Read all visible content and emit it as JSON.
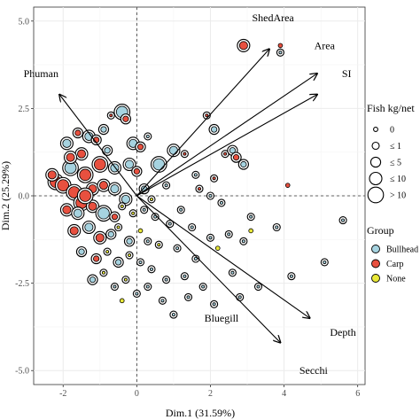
{
  "chart_data": {
    "type": "scatter",
    "xlabel": "Dim.1 (31.59%)",
    "ylabel": "Dim.2 (25.29%)",
    "xlim": [
      -2.8,
      6.2
    ],
    "ylim": [
      -5.4,
      5.4
    ],
    "x_ticks": [
      -2,
      0,
      2,
      4,
      6
    ],
    "y_ticks": [
      -5.0,
      -2.5,
      0.0,
      2.5,
      5.0
    ],
    "x_tick_labels": [
      "-2",
      "0",
      "2",
      "4",
      "6"
    ],
    "y_tick_labels": [
      "-5.0",
      "-2.5",
      "0.0",
      "2.5",
      "5.0"
    ],
    "grid": true,
    "legend_position": "right",
    "arrows": [
      {
        "name": "ShedArea",
        "x": 3.6,
        "y": 4.2,
        "label_x": 3.7,
        "label_y": 5.0
      },
      {
        "name": "Area",
        "x": 4.9,
        "y": 3.5,
        "label_x": 5.1,
        "label_y": 4.2
      },
      {
        "name": "SI",
        "x": 4.9,
        "y": 2.9,
        "label_x": 5.7,
        "label_y": 3.4
      },
      {
        "name": "Phuman",
        "x": -2.1,
        "y": 2.9,
        "label_x": -2.6,
        "label_y": 3.4
      },
      {
        "name": "Bluegill",
        "x": 3.9,
        "y": -4.2,
        "label_x": 2.3,
        "label_y": -3.6
      },
      {
        "name": "Depth",
        "x": 4.7,
        "y": -3.5,
        "label_x": 5.6,
        "label_y": -4.0
      },
      {
        "name": "Secchi",
        "x": 0,
        "y": 0,
        "label_x": 4.8,
        "label_y": -5.1
      }
    ],
    "size_legend": {
      "title": "Fish kg/net",
      "levels": [
        "0",
        "≤ 1",
        "≤ 5",
        "≤ 10",
        "> 10"
      ]
    },
    "group_legend": {
      "title": "Group",
      "levels": [
        "Bullhead",
        "Carp",
        "None"
      ]
    },
    "group_colors": {
      "Bullhead": "#a6d3e0",
      "Carp": "#e8503f",
      "None": "#e9e838"
    },
    "points": [
      [
        -1.9,
        1.5,
        "Bullhead",
        3
      ],
      [
        -1.6,
        1.8,
        "Carp",
        2
      ],
      [
        -1.3,
        1.7,
        "Bullhead",
        3
      ],
      [
        -1.1,
        1.6,
        "Carp",
        2
      ],
      [
        -0.7,
        2.3,
        "Carp",
        1
      ],
      [
        -0.4,
        2.4,
        "Bullhead",
        4
      ],
      [
        -0.3,
        2.2,
        "Carp",
        2
      ],
      [
        -0.1,
        1.5,
        "Bullhead",
        3
      ],
      [
        0.1,
        1.4,
        "Carp",
        2
      ],
      [
        0.6,
        0.9,
        "Bullhead",
        4
      ],
      [
        1.0,
        1.3,
        "Bullhead",
        3
      ],
      [
        1.3,
        1.2,
        "Carp",
        1
      ],
      [
        1.9,
        2.3,
        "Carp",
        1
      ],
      [
        2.1,
        1.9,
        "Bullhead",
        2
      ],
      [
        2.4,
        1.2,
        "Carp",
        1
      ],
      [
        2.6,
        1.3,
        "Bullhead",
        2
      ],
      [
        2.9,
        4.3,
        "Carp",
        3
      ],
      [
        3.9,
        4.1,
        "Bullhead",
        1
      ],
      [
        3.9,
        4.3,
        "Carp",
        0
      ],
      [
        2.7,
        1.1,
        "Carp",
        2
      ],
      [
        -1.8,
        0.8,
        "Bullhead",
        4
      ],
      [
        -1.5,
        1.2,
        "Carp",
        3
      ],
      [
        -1.4,
        0.6,
        "Carp",
        4
      ],
      [
        -1.0,
        0.9,
        "Carp",
        4
      ],
      [
        -0.8,
        1.3,
        "Bullhead",
        2
      ],
      [
        -0.6,
        0.8,
        "Bullhead",
        3
      ],
      [
        -0.2,
        0.9,
        "Bullhead",
        3
      ],
      [
        0.0,
        0.7,
        "Carp",
        2
      ],
      [
        -2.2,
        0.4,
        "Carp",
        4
      ],
      [
        -2.0,
        0.3,
        "Carp",
        4
      ],
      [
        -1.7,
        0.1,
        "Carp",
        4
      ],
      [
        -1.5,
        -0.2,
        "Carp",
        4
      ],
      [
        -1.2,
        0.2,
        "Carp",
        3
      ],
      [
        -0.9,
        0.3,
        "Carp",
        3
      ],
      [
        -0.6,
        0.2,
        "Bullhead",
        3
      ],
      [
        -0.3,
        -0.1,
        "Bullhead",
        3
      ],
      [
        0.2,
        0.2,
        "Bullhead",
        2
      ],
      [
        0.4,
        -0.1,
        "None",
        1
      ],
      [
        0.8,
        0.3,
        "Bullhead",
        1
      ],
      [
        1.2,
        -0.4,
        "Bullhead",
        1
      ],
      [
        1.7,
        0.2,
        "Carp",
        1
      ],
      [
        2.0,
        0.0,
        "Bullhead",
        1
      ],
      [
        2.3,
        -0.2,
        "Bullhead",
        1
      ],
      [
        2.1,
        0.5,
        "Carp",
        1
      ],
      [
        -1.9,
        -0.4,
        "Carp",
        3
      ],
      [
        -1.6,
        -0.5,
        "Bullhead",
        3
      ],
      [
        -1.2,
        -0.3,
        "Carp",
        3
      ],
      [
        -0.9,
        -0.5,
        "Bullhead",
        4
      ],
      [
        -0.6,
        -0.6,
        "Carp",
        2
      ],
      [
        -0.4,
        -0.3,
        "None",
        1
      ],
      [
        -0.1,
        -0.5,
        "None",
        1
      ],
      [
        0.2,
        -0.4,
        "Bullhead",
        1
      ],
      [
        0.5,
        -0.6,
        "Bullhead",
        1
      ],
      [
        0.9,
        -0.8,
        "Bullhead",
        1
      ],
      [
        1.5,
        -0.9,
        "Bullhead",
        1
      ],
      [
        2.0,
        -1.2,
        "Bullhead",
        1
      ],
      [
        2.5,
        -1.1,
        "Bullhead",
        1
      ],
      [
        3.1,
        -0.6,
        "Bullhead",
        1
      ],
      [
        3.8,
        -0.9,
        "Bullhead",
        1
      ],
      [
        4.1,
        0.3,
        "Carp",
        0
      ],
      [
        5.6,
        -0.7,
        "Bullhead",
        1
      ],
      [
        -1.7,
        -1.0,
        "Carp",
        3
      ],
      [
        -1.3,
        -0.9,
        "Bullhead",
        3
      ],
      [
        -1.0,
        -1.2,
        "Carp",
        3
      ],
      [
        -0.7,
        -1.1,
        "Bullhead",
        2
      ],
      [
        -0.5,
        -0.9,
        "None",
        1
      ],
      [
        -0.2,
        -1.3,
        "Bullhead",
        2
      ],
      [
        0.1,
        -1.0,
        "None",
        0
      ],
      [
        0.3,
        -1.3,
        "Bullhead",
        1
      ],
      [
        0.6,
        -1.4,
        "None",
        1
      ],
      [
        1.1,
        -1.5,
        "Bullhead",
        1
      ],
      [
        1.6,
        -1.8,
        "Bullhead",
        1
      ],
      [
        2.2,
        -1.5,
        "None",
        0
      ],
      [
        2.9,
        -1.3,
        "Bullhead",
        1
      ],
      [
        3.1,
        -1.0,
        "None",
        0
      ],
      [
        -1.5,
        -1.6,
        "Bullhead",
        2
      ],
      [
        -1.1,
        -1.8,
        "Carp",
        2
      ],
      [
        -0.8,
        -1.6,
        "None",
        1
      ],
      [
        -0.5,
        -1.9,
        "Bullhead",
        2
      ],
      [
        -0.2,
        -1.7,
        "None",
        1
      ],
      [
        0.1,
        -1.9,
        "Bullhead",
        1
      ],
      [
        0.4,
        -2.1,
        "Bullhead",
        1
      ],
      [
        0.8,
        -2.4,
        "Bullhead",
        1
      ],
      [
        1.3,
        -2.3,
        "Bullhead",
        1
      ],
      [
        1.8,
        -2.6,
        "Bullhead",
        1
      ],
      [
        2.6,
        -2.2,
        "Bullhead",
        1
      ],
      [
        3.3,
        -2.6,
        "Bullhead",
        1
      ],
      [
        4.2,
        -2.3,
        "Bullhead",
        1
      ],
      [
        5.1,
        -1.9,
        "Bullhead",
        1
      ],
      [
        -1.2,
        -2.4,
        "Bullhead",
        2
      ],
      [
        -0.9,
        -2.2,
        "None",
        1
      ],
      [
        -0.6,
        -2.6,
        "Bullhead",
        1
      ],
      [
        -0.3,
        -2.4,
        "None",
        1
      ],
      [
        0.0,
        -2.8,
        "Bullhead",
        1
      ],
      [
        0.3,
        -2.6,
        "Bullhead",
        1
      ],
      [
        0.7,
        -3.0,
        "Bullhead",
        1
      ],
      [
        1.4,
        -2.9,
        "Bullhead",
        1
      ],
      [
        2.1,
        -3.1,
        "Bullhead",
        1
      ],
      [
        2.8,
        -2.9,
        "Bullhead",
        1
      ],
      [
        1.0,
        -3.4,
        "Bullhead",
        1
      ],
      [
        -0.4,
        -3.0,
        "None",
        0
      ],
      [
        -1.4,
        0.0,
        "Carp",
        4
      ],
      [
        -1.8,
        1.1,
        "Carp",
        3
      ],
      [
        -0.9,
        1.9,
        "Bullhead",
        2
      ],
      [
        0.3,
        1.7,
        "Bullhead",
        1
      ],
      [
        1.6,
        0.6,
        "Bullhead",
        1
      ],
      [
        2.9,
        0.9,
        "Bullhead",
        2
      ],
      [
        -2.3,
        0.6,
        "Carp",
        3
      ]
    ]
  }
}
